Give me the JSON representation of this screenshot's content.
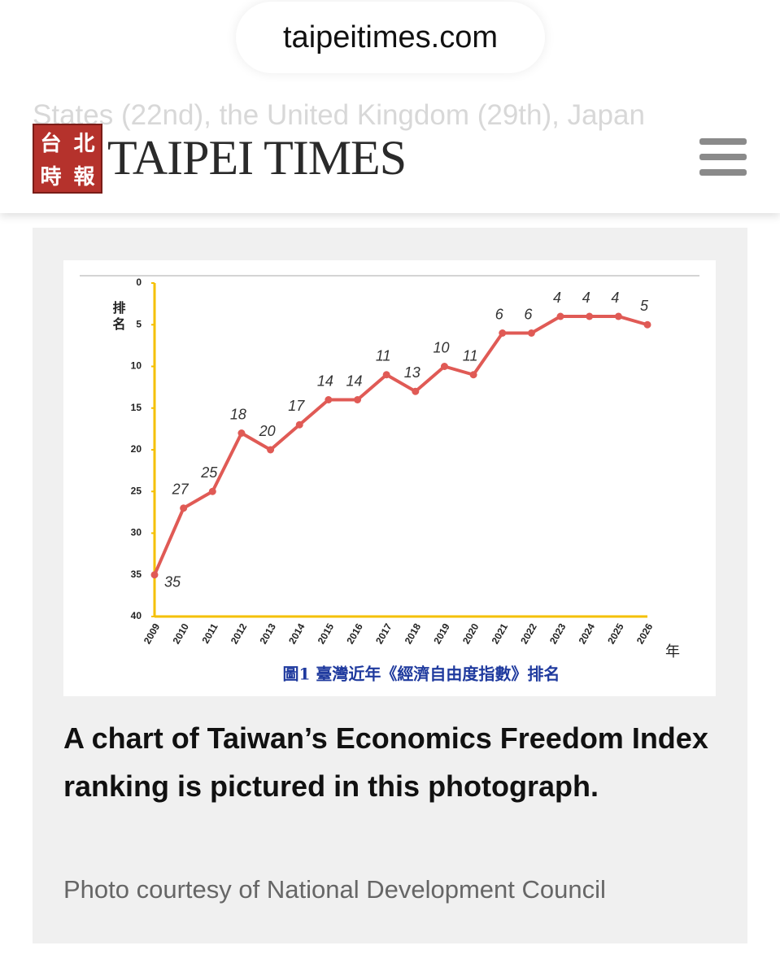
{
  "url": "taipeitimes.com",
  "background_text": "States (22nd), the United Kingdom (29th), Japan",
  "logo": {
    "characters": [
      "台",
      "北",
      "時",
      "報"
    ],
    "name": "TAIPEI TIMES"
  },
  "chart_data": {
    "type": "line",
    "title": "圖1 臺灣近年《經濟自由度指數》排名",
    "y_label": "排名",
    "x_label": "年",
    "categories": [
      "2009",
      "2010",
      "2011",
      "2012",
      "2013",
      "2014",
      "2015",
      "2016",
      "2017",
      "2018",
      "2019",
      "2020",
      "2021",
      "2022",
      "2023",
      "2024",
      "2025",
      "2026"
    ],
    "series": [
      {
        "name": "排名",
        "color": "#e05a55",
        "values": [
          35,
          27,
          25,
          18,
          20,
          17,
          14,
          14,
          11,
          13,
          10,
          11,
          6,
          6,
          4,
          4,
          4,
          5
        ]
      }
    ],
    "ylim": [
      40,
      0
    ],
    "yticks": [
      0,
      5,
      10,
      15,
      20,
      25,
      30,
      35,
      40
    ]
  },
  "caption": "A chart of Taiwan’s Economics Freedom Index ranking is pictured in this photograph.",
  "credit": "Photo courtesy of National Development Council"
}
